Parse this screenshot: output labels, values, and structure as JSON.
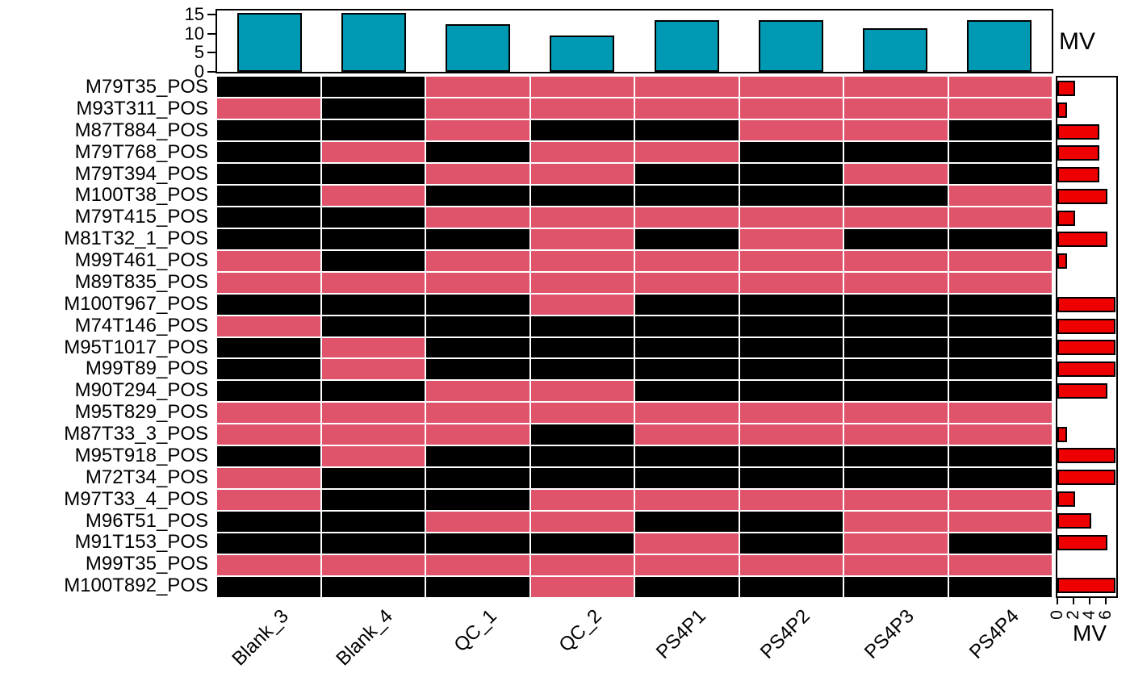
{
  "colors": {
    "missing_cell": "#000000",
    "present_cell": "#DF536B",
    "top_bar_fill": "#0099B3",
    "right_bar_fill": "#EE0000",
    "frame_stroke": "#000000",
    "grid_gap": "#FFFFFF"
  },
  "top_chart": {
    "label": "MV"
  },
  "right_chart": {
    "label": "MV"
  },
  "chart_data": [
    {
      "type": "bar",
      "title": "Missing values per sample (top bars)",
      "categories": [
        "Blank_3",
        "Blank_4",
        "QC_1",
        "QC_2",
        "PS4P1",
        "PS4P2",
        "PS4P3",
        "PS4P4"
      ],
      "values": [
        15,
        15,
        12,
        9,
        13,
        13,
        11,
        13
      ],
      "ylim": [
        0,
        15
      ],
      "yticks": [
        0,
        5,
        10,
        15
      ],
      "bar_color": "#0099B3",
      "axis_label": "MV",
      "grid": false,
      "legend_position": "right"
    },
    {
      "type": "heatmap",
      "title": "Missing value map (black = missing, pink = present)",
      "columns": [
        "Blank_3",
        "Blank_4",
        "QC_1",
        "QC_2",
        "PS4P1",
        "PS4P2",
        "PS4P3",
        "PS4P4"
      ],
      "rows": [
        "M79T35_POS",
        "M93T311_POS",
        "M87T884_POS",
        "M79T768_POS",
        "M79T394_POS",
        "M100T38_POS",
        "M79T415_POS",
        "M81T32_1_POS",
        "M99T461_POS",
        "M89T835_POS",
        "M100T967_POS",
        "M74T146_POS",
        "M95T1017_POS",
        "M99T89_POS",
        "M90T294_POS",
        "M95T829_POS",
        "M87T33_3_POS",
        "M95T918_POS",
        "M72T34_POS",
        "M97T33_4_POS",
        "M96T51_POS",
        "M91T153_POS",
        "M99T35_POS",
        "M100T892_POS"
      ],
      "cells": [
        [
          1,
          1,
          0,
          0,
          0,
          0,
          0,
          0
        ],
        [
          0,
          1,
          0,
          0,
          0,
          0,
          0,
          0
        ],
        [
          1,
          1,
          0,
          1,
          1,
          0,
          0,
          1
        ],
        [
          1,
          0,
          1,
          0,
          0,
          1,
          1,
          1
        ],
        [
          1,
          1,
          0,
          0,
          1,
          1,
          0,
          1
        ],
        [
          1,
          0,
          1,
          1,
          1,
          1,
          1,
          0
        ],
        [
          1,
          1,
          0,
          0,
          0,
          0,
          0,
          0
        ],
        [
          1,
          1,
          1,
          0,
          1,
          0,
          1,
          1
        ],
        [
          0,
          1,
          0,
          0,
          0,
          0,
          0,
          0
        ],
        [
          0,
          0,
          0,
          0,
          0,
          0,
          0,
          0
        ],
        [
          1,
          1,
          1,
          0,
          1,
          1,
          1,
          1
        ],
        [
          0,
          1,
          1,
          1,
          1,
          1,
          1,
          1
        ],
        [
          1,
          0,
          1,
          1,
          1,
          1,
          1,
          1
        ],
        [
          1,
          0,
          1,
          1,
          1,
          1,
          1,
          1
        ],
        [
          1,
          1,
          0,
          0,
          1,
          1,
          1,
          1
        ],
        [
          0,
          0,
          0,
          0,
          0,
          0,
          0,
          0
        ],
        [
          0,
          0,
          0,
          1,
          0,
          0,
          0,
          0
        ],
        [
          1,
          0,
          1,
          1,
          1,
          1,
          1,
          1
        ],
        [
          0,
          1,
          1,
          1,
          1,
          1,
          1,
          1
        ],
        [
          0,
          1,
          1,
          0,
          0,
          0,
          0,
          0
        ],
        [
          1,
          1,
          0,
          0,
          1,
          1,
          0,
          0
        ],
        [
          1,
          1,
          1,
          1,
          0,
          1,
          0,
          1
        ],
        [
          0,
          0,
          0,
          0,
          0,
          0,
          0,
          0
        ],
        [
          1,
          1,
          1,
          0,
          1,
          1,
          1,
          1
        ]
      ],
      "cell_encoding": {
        "1": "missing (black)",
        "0": "present (pink)"
      }
    },
    {
      "type": "bar",
      "orientation": "horizontal",
      "title": "Missing values per feature (right bars)",
      "categories": [
        "M79T35_POS",
        "M93T311_POS",
        "M87T884_POS",
        "M79T768_POS",
        "M79T394_POS",
        "M100T38_POS",
        "M79T415_POS",
        "M81T32_1_POS",
        "M99T461_POS",
        "M89T835_POS",
        "M100T967_POS",
        "M74T146_POS",
        "M95T1017_POS",
        "M99T89_POS",
        "M90T294_POS",
        "M95T829_POS",
        "M87T33_3_POS",
        "M95T918_POS",
        "M72T34_POS",
        "M97T33_4_POS",
        "M96T51_POS",
        "M91T153_POS",
        "M99T35_POS",
        "M100T892_POS"
      ],
      "values": [
        2,
        1,
        5,
        5,
        5,
        6,
        2,
        6,
        1,
        0,
        7,
        7,
        7,
        7,
        6,
        0,
        1,
        7,
        7,
        2,
        4,
        6,
        0,
        7
      ],
      "xlim": [
        0,
        7.5
      ],
      "xticks": [
        0,
        2,
        4,
        6
      ],
      "bar_color": "#EE0000",
      "axis_label": "MV",
      "grid": false
    }
  ]
}
